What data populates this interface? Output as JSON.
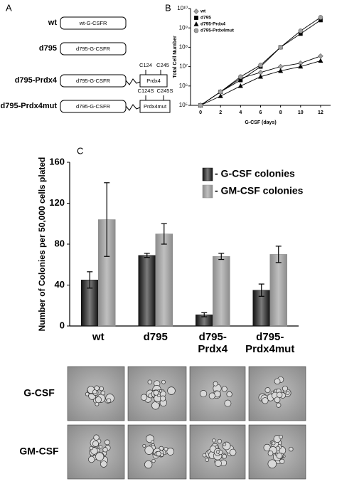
{
  "panel_labels": [
    "A",
    "B",
    "C"
  ],
  "constructs": [
    {
      "label": "wt",
      "box": "wt-G-CSFR"
    },
    {
      "label": "d795",
      "box": "d795-G-CSFR"
    },
    {
      "label": "d795-Prdx4",
      "box": "d795-G-CSFR",
      "fusion": "Prdx4",
      "sites": [
        "C124",
        "C245"
      ]
    },
    {
      "label": "d795-Prdx4mut",
      "box": "d795-G-CSFR",
      "fusion": "Prdx4mut",
      "sites": [
        "C124S",
        "C245S"
      ]
    }
  ],
  "chart_data": [
    {
      "type": "line",
      "x_label": "G-CSF (days)",
      "y_label": "Total Cell Number",
      "x": [
        0,
        2,
        4,
        6,
        8,
        10,
        12
      ],
      "xlim": [
        -1,
        13
      ],
      "xticks": [
        0,
        2,
        4,
        6,
        8,
        10,
        12
      ],
      "ylim": [
        100000,
        10000000000
      ],
      "log_y": true,
      "yticks": [
        {
          "value": 100000,
          "label": "10⁵"
        },
        {
          "value": 1000000,
          "label": "10⁶"
        },
        {
          "value": 10000000,
          "label": "10⁷"
        },
        {
          "value": 100000000,
          "label": "10⁸"
        },
        {
          "value": 1000000000,
          "label": "10⁹"
        },
        {
          "value": 10000000000,
          "label": "10¹⁰"
        }
      ],
      "legend": "upper left",
      "series": [
        {
          "name": "wt",
          "color": "#a0a0a0",
          "marker": "diamond",
          "values": [
            100000,
            500000,
            2500000,
            5000000,
            10000000,
            15000000,
            35000000
          ]
        },
        {
          "name": "d795",
          "color": "#000000",
          "marker": "square",
          "values": [
            100000,
            500000,
            2000000,
            10000000,
            100000000,
            500000000,
            2500000000
          ]
        },
        {
          "name": "d795-Prdx4",
          "color": "#000000",
          "marker": "triangle",
          "values": [
            100000,
            300000,
            1000000,
            3000000,
            6000000,
            10000000,
            20000000
          ]
        },
        {
          "name": "d795-Prdx4mut",
          "color": "#a0a0a0",
          "marker": "circle",
          "values": [
            100000,
            500000,
            3000000,
            12000000,
            100000000,
            700000000,
            3500000000
          ]
        }
      ]
    },
    {
      "type": "bar",
      "y_label": "Number of Colonies per 50,000 cells plated",
      "categories": [
        "wt",
        "d795",
        "d795-Prdx4",
        "d795-Prdx4mut"
      ],
      "ylim": [
        0,
        160
      ],
      "yticks": [
        0,
        40,
        80,
        120,
        160
      ],
      "legend": "upper right",
      "series": [
        {
          "name": "- G-CSF colonies",
          "color": "#111111",
          "values": [
            45,
            69,
            11,
            35
          ],
          "errors": [
            8,
            2,
            2,
            6
          ]
        },
        {
          "name": "- GM-CSF colonies",
          "color": "#8c8c8c",
          "values": [
            104,
            90,
            68,
            70
          ],
          "errors": [
            36,
            10,
            3,
            8
          ]
        }
      ]
    }
  ],
  "micrographs": {
    "rows": [
      "G-CSF",
      "GM-CSF"
    ]
  }
}
